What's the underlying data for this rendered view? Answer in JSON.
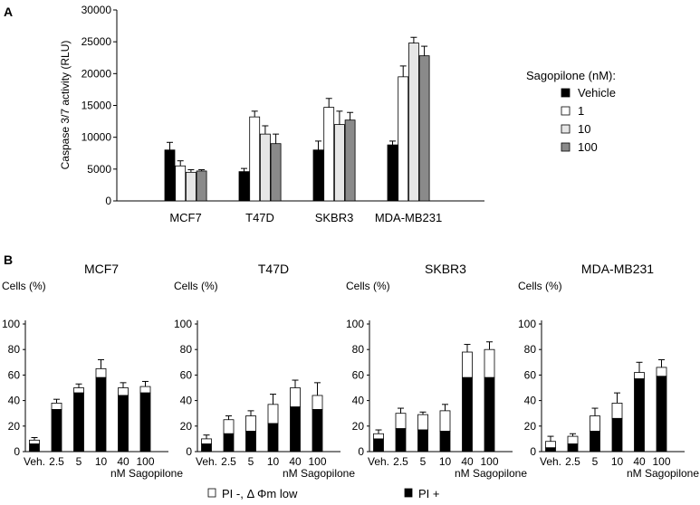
{
  "panel_labels": {
    "a": "A",
    "b": "B"
  },
  "colors": {
    "vehicle": "#000000",
    "d1": "#ffffff",
    "d10": "#e6e6e6",
    "d100": "#8a8a8a",
    "pi_neg": "#ffffff",
    "pi_pos": "#000000"
  },
  "chart_data": [
    {
      "id": "A",
      "type": "bar",
      "ylabel": "Caspase 3/7 activity (RLU)",
      "ylim": [
        0,
        30000
      ],
      "yticks": [
        "0",
        "5000",
        "10000",
        "15000",
        "20000",
        "25000",
        "30000"
      ],
      "ytick_values": [
        0,
        5000,
        10000,
        15000,
        20000,
        25000,
        30000
      ],
      "categories": [
        "MCF7",
        "T47D",
        "SKBR3",
        "MDA-MB231"
      ],
      "legend_title": "Sagopilone (nM):",
      "series": [
        {
          "name": "Vehicle",
          "key": "vehicle",
          "values": [
            8000,
            4600,
            8000,
            8800
          ],
          "errors": [
            1200,
            500,
            1400,
            600
          ]
        },
        {
          "name": "1",
          "key": "d1",
          "values": [
            5500,
            13200,
            14700,
            19500
          ],
          "errors": [
            800,
            900,
            1400,
            1700
          ]
        },
        {
          "name": "10",
          "key": "d10",
          "values": [
            4500,
            10500,
            12000,
            24800
          ],
          "errors": [
            400,
            1300,
            2100,
            900
          ]
        },
        {
          "name": "100",
          "key": "d100",
          "values": [
            4700,
            9000,
            12700,
            22800
          ],
          "errors": [
            200,
            1500,
            1200,
            1500
          ]
        }
      ]
    },
    {
      "id": "B",
      "type": "stacked-bar",
      "ylabel": "Cells (%)",
      "ylim": [
        0,
        100
      ],
      "yticks": [
        "0",
        "20",
        "40",
        "60",
        "80",
        "100"
      ],
      "ytick_values": [
        0,
        20,
        40,
        60,
        80,
        100
      ],
      "xlabel": "nM Sagopilone",
      "categories": [
        "Veh.",
        "2.5",
        "5",
        "10",
        "40",
        "100"
      ],
      "legend": [
        {
          "name": "PI -, Δ Φm  low",
          "key": "pi_neg"
        },
        {
          "name": "PI +",
          "key": "pi_pos"
        }
      ],
      "panels": [
        {
          "title": "MCF7",
          "pi_pos": [
            6,
            33,
            46,
            58,
            44,
            46
          ],
          "total": [
            9,
            38,
            50,
            65,
            50,
            51
          ],
          "errors": [
            2,
            3,
            3,
            7,
            4,
            4
          ]
        },
        {
          "title": "T47D",
          "pi_pos": [
            6,
            14,
            16,
            22,
            35,
            33
          ],
          "total": [
            10,
            25,
            28,
            37,
            50,
            44
          ],
          "errors": [
            3,
            3,
            4,
            8,
            6,
            10
          ]
        },
        {
          "title": "SKBR3",
          "pi_pos": [
            10,
            18,
            17,
            16,
            58,
            58
          ],
          "total": [
            14,
            30,
            29,
            32,
            78,
            80
          ],
          "errors": [
            3,
            4,
            2,
            5,
            6,
            6
          ]
        },
        {
          "title": "MDA-MB231",
          "pi_pos": [
            3,
            6,
            16,
            26,
            57,
            59
          ],
          "total": [
            8,
            12,
            28,
            38,
            62,
            66
          ],
          "errors": [
            4,
            2,
            6,
            8,
            8,
            6
          ]
        }
      ]
    }
  ]
}
